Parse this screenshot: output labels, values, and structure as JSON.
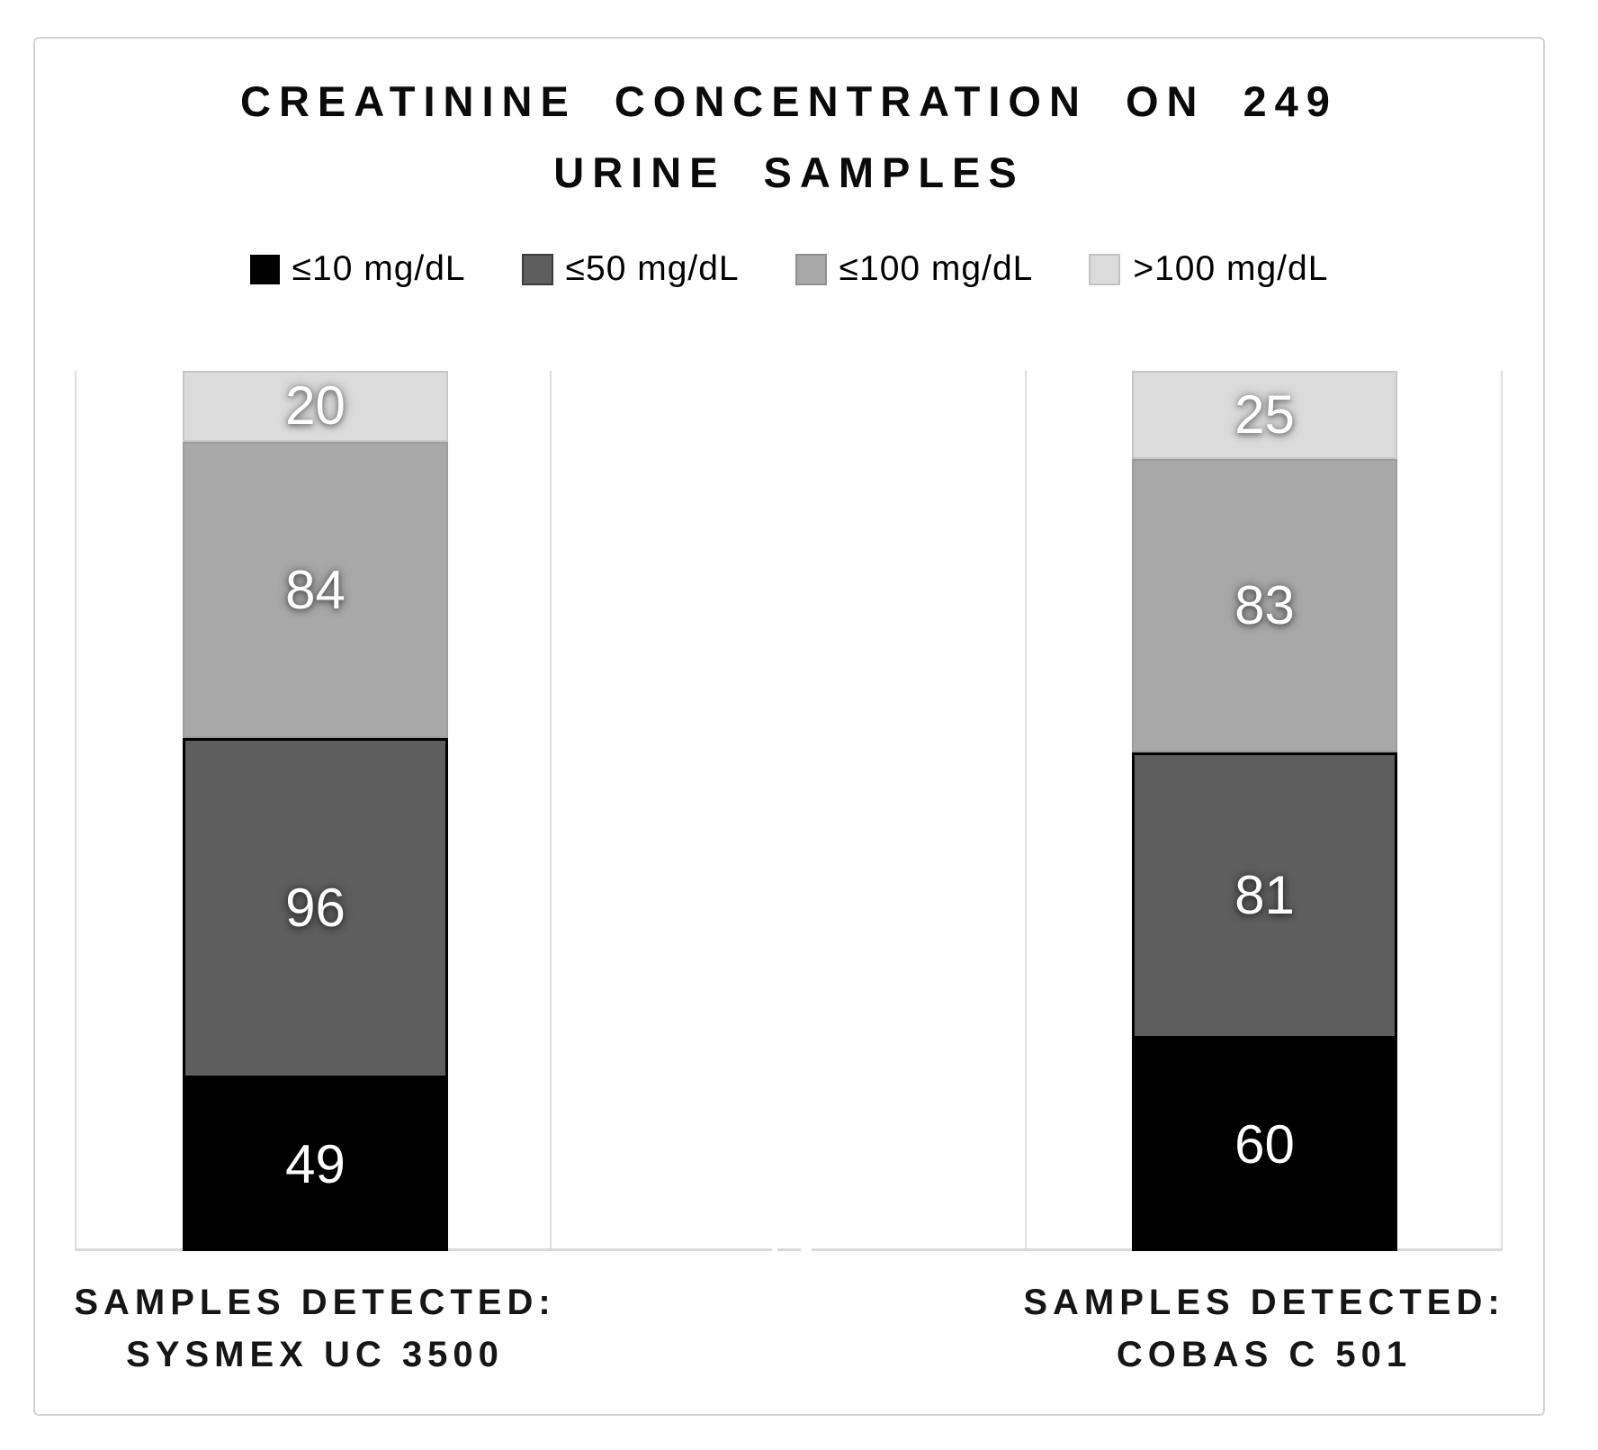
{
  "chart_data": {
    "type": "bar",
    "stacked": true,
    "title": "CREATININE CONCENTRATION ON 249 URINE SAMPLES",
    "title_lines": [
      "CREATININE CONCENTRATION ON 249",
      "URINE SAMPLES"
    ],
    "total_per_bar": 249,
    "categories": [
      "SYSMEX UC 3500",
      "COBAS C 501"
    ],
    "category_labels": [
      {
        "line1": "SAMPLES DETECTED:",
        "line2": "SYSMEX UC 3500"
      },
      {
        "line1": "SAMPLES DETECTED:",
        "line2": "COBAS C 501"
      }
    ],
    "series": [
      {
        "name": "≤10 mg/dL",
        "color": "#000000",
        "values": [
          49,
          60
        ]
      },
      {
        "name": "≤50 mg/dL",
        "color": "#5e5e5e",
        "values": [
          96,
          81
        ]
      },
      {
        "name": "≤100 mg/dL",
        "color": "#a8a8a8",
        "values": [
          84,
          83
        ]
      },
      {
        "name": ">100 mg/dL",
        "color": "#dbdbdb",
        "values": [
          20,
          25
        ]
      }
    ],
    "legend_position": "top",
    "value_labels_shown": true,
    "y_axis": "hidden",
    "ylim": [
      0,
      249
    ],
    "gridlines": "vertical-category-separators"
  }
}
